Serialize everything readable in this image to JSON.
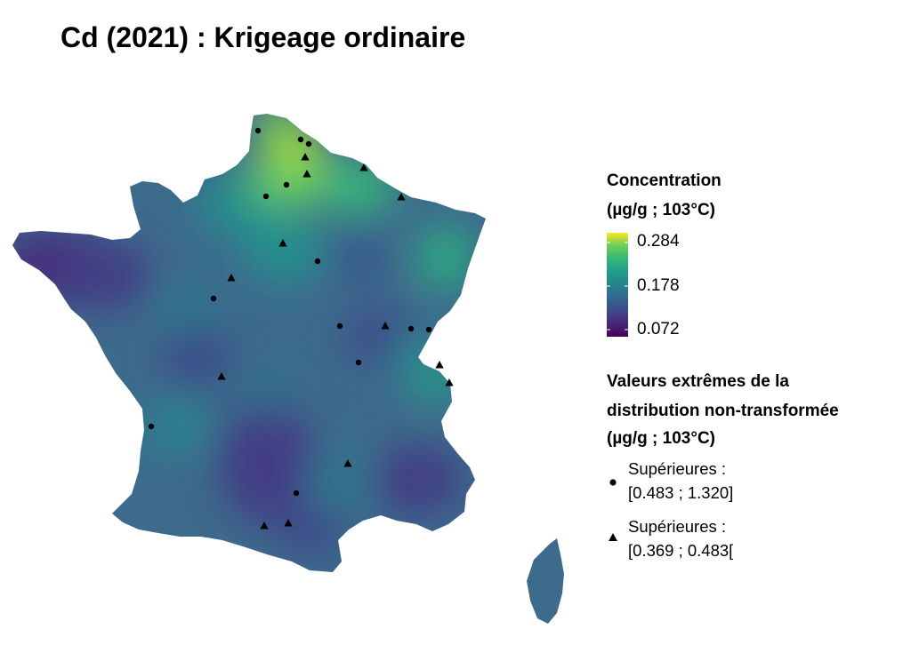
{
  "title": "Cd (2021) : Krigeage ordinaire",
  "colors": {
    "viridis_low": "#440154",
    "viridis_mid": "#21908d",
    "viridis_high": "#fde725",
    "map_base": "#3d6b8c",
    "marker": "#000000"
  },
  "legend_concentration": {
    "title_line1": "Concentration",
    "title_line2": "(µg/g ; 103°C)",
    "ticks": {
      "max": "0.284",
      "mid": "0.178",
      "min": "0.072"
    }
  },
  "legend_extremes": {
    "title_line1": "Valeurs extrêmes de la",
    "title_line2": "distribution non-transformée",
    "title_line3": "(µg/g ; 103°C)",
    "circle": {
      "symbol": "circle",
      "label_line1": "Supérieures :",
      "label_line2": "[0.483 ; 1.320]"
    },
    "triangle": {
      "symbol": "triangle",
      "label_line1": "Supérieures :",
      "label_line2": "[0.369 ; 0.483["
    }
  }
}
